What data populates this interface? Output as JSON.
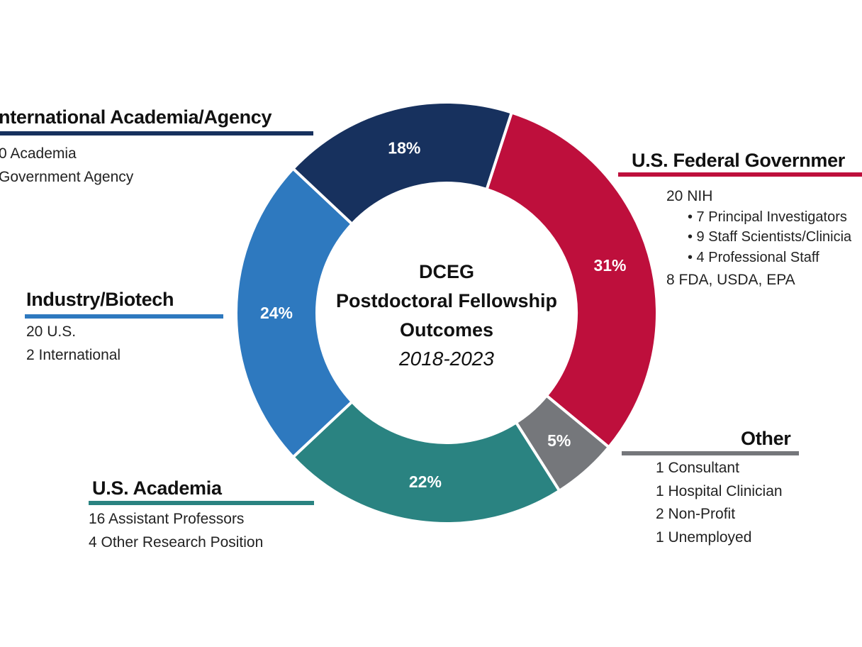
{
  "chart_data": {
    "type": "pie",
    "subtype": "donut",
    "title": [
      "DCEG",
      "Postdoctoral Fellowship",
      "Outcomes"
    ],
    "subtitle": "2018-2023",
    "slices": [
      {
        "name": "U.S. Federal Government",
        "value": 31,
        "label": "31%",
        "color": "#BE0F3C"
      },
      {
        "name": "Other",
        "value": 5,
        "label": "5%",
        "color": "#75777B"
      },
      {
        "name": "U.S. Academia",
        "value": 22,
        "label": "22%",
        "color": "#2A8381"
      },
      {
        "name": "Industry/Biotech",
        "value": 24,
        "label": "24%",
        "color": "#2E79BF"
      },
      {
        "name": "International Academia/Agency",
        "value": 18,
        "label": "18%",
        "color": "#17315E"
      }
    ],
    "start_angle_deg": 18,
    "direction": "clockwise"
  },
  "categories": {
    "international": {
      "title": "nternational Academia/Agency",
      "items": [
        "0 Academia",
        " Government Agency"
      ]
    },
    "federal": {
      "title": "U.S. Federal Governmer",
      "items": [
        "20 NIH",
        "• 7 Principal Investigators",
        "• 9 Staff Scientists/Clinicia",
        "• 4 Professional Staff",
        "8 FDA, USDA, EPA"
      ]
    },
    "industry": {
      "title": "Industry/Biotech",
      "items": [
        "20 U.S.",
        "2 International"
      ]
    },
    "academia": {
      "title": "U.S. Academia",
      "items": [
        "16 Assistant Professors",
        "4 Other Research Position"
      ]
    },
    "other": {
      "title": "Other",
      "items": [
        "1 Consultant",
        "1 Hospital Clinician",
        "2 Non-Profit",
        "1 Unemployed"
      ]
    }
  }
}
